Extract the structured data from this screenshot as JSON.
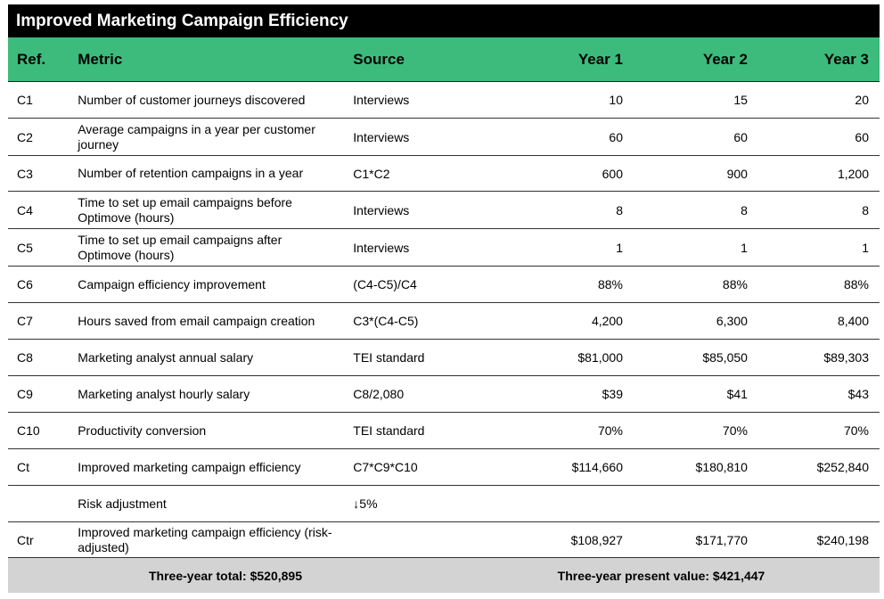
{
  "title": "Improved Marketing Campaign Efficiency",
  "headers": {
    "ref": "Ref.",
    "metric": "Metric",
    "source": "Source",
    "year1": "Year 1",
    "year2": "Year 2",
    "year3": "Year 3"
  },
  "rows": [
    {
      "ref": "C1",
      "metric": "Number of customer journeys discovered",
      "source": "Interviews",
      "y1": "10",
      "y2": "15",
      "y3": "20"
    },
    {
      "ref": "C2",
      "metric": "Average campaigns in a year per customer journey",
      "source": "Interviews",
      "y1": "60",
      "y2": "60",
      "y3": "60"
    },
    {
      "ref": "C3",
      "metric": "Number of retention campaigns in a year",
      "source": "C1*C2",
      "y1": "600",
      "y2": "900",
      "y3": "1,200"
    },
    {
      "ref": "C4",
      "metric": "Time to set up email campaigns before Optimove (hours)",
      "source": "Interviews",
      "y1": "8",
      "y2": "8",
      "y3": "8"
    },
    {
      "ref": "C5",
      "metric": "Time to set up email campaigns after Optimove (hours)",
      "source": "Interviews",
      "y1": "1",
      "y2": "1",
      "y3": "1"
    },
    {
      "ref": "C6",
      "metric": "Campaign efficiency improvement",
      "source": "(C4-C5)/C4",
      "y1": "88%",
      "y2": "88%",
      "y3": "88%"
    },
    {
      "ref": "C7",
      "metric": "Hours saved from email campaign creation",
      "source": "C3*(C4-C5)",
      "y1": "4,200",
      "y2": "6,300",
      "y3": "8,400"
    },
    {
      "ref": "C8",
      "metric": "Marketing analyst annual salary",
      "source": "TEI standard",
      "y1": "$81,000",
      "y2": "$85,050",
      "y3": "$89,303"
    },
    {
      "ref": "C9",
      "metric": "Marketing analyst hourly salary",
      "source": "C8/2,080",
      "y1": "$39",
      "y2": "$41",
      "y3": "$43"
    },
    {
      "ref": "C10",
      "metric": "Productivity conversion",
      "source": "TEI standard",
      "y1": "70%",
      "y2": "70%",
      "y3": "70%"
    },
    {
      "ref": "Ct",
      "metric": "Improved marketing campaign efficiency",
      "source": "C7*C9*C10",
      "y1": "$114,660",
      "y2": "$180,810",
      "y3": "$252,840"
    },
    {
      "ref": "",
      "metric": "Risk adjustment",
      "source": "↓5%",
      "y1": "",
      "y2": "",
      "y3": ""
    },
    {
      "ref": "Ctr",
      "metric": "Improved marketing campaign efficiency (risk-adjusted)",
      "source": "",
      "y1": "$108,927",
      "y2": "$171,770",
      "y3": "$240,198"
    }
  ],
  "footer": {
    "total": "Three-year total: $520,895",
    "present_value": "Three-year present value: $421,447"
  },
  "colors": {
    "title_bg": "#000000",
    "header_bg": "#3dbb7d",
    "footer_bg": "#d3d3d3"
  }
}
